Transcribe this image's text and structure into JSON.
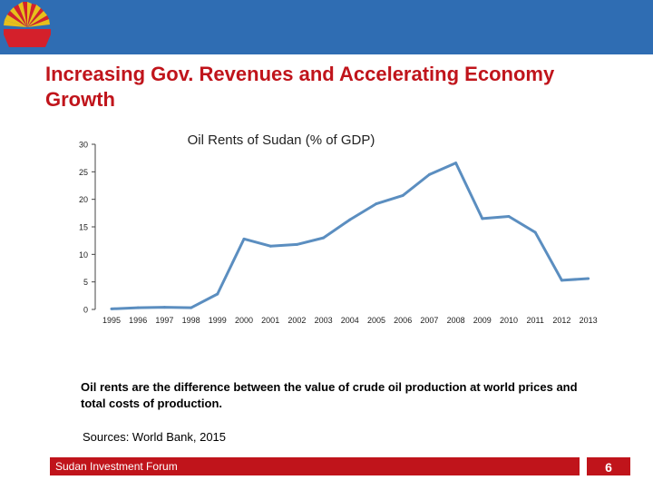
{
  "slide": {
    "title": "Increasing Gov. Revenues and  Accelerating Economy Growth",
    "description": "Oil rents are the difference between the value of crude oil production at world prices and total costs of production.",
    "sources": "Sources: World Bank, 2015",
    "footer_label": "Sudan Investment Forum",
    "page_number": "6"
  },
  "colors": {
    "header": "#2f6db3",
    "title": "#c0141b",
    "line": "#5b8ec0",
    "footer": "#c0141b"
  },
  "icons": {
    "logo": "sunburst-logo-icon"
  },
  "chart_data": {
    "type": "line",
    "title": "Oil  Rents of Sudan (% of GDP)",
    "xlabel": "",
    "ylabel": "",
    "ylim": [
      0,
      30
    ],
    "yticks": [
      0,
      5,
      10,
      15,
      20,
      25,
      30
    ],
    "grid": false,
    "legend": "none",
    "categories": [
      "1995",
      "1996",
      "1997",
      "1998",
      "1999",
      "2000",
      "2001",
      "2002",
      "2003",
      "2004",
      "2005",
      "2006",
      "2007",
      "2008",
      "2009",
      "2010",
      "2011",
      "2012",
      "2013"
    ],
    "series": [
      {
        "name": "Oil rents (% of GDP)",
        "values": [
          0.1,
          0.3,
          0.4,
          0.3,
          2.8,
          12.8,
          11.5,
          11.8,
          13.0,
          16.3,
          19.2,
          20.7,
          24.5,
          26.6,
          16.5,
          16.9,
          14.0,
          5.3,
          5.6
        ]
      }
    ]
  }
}
